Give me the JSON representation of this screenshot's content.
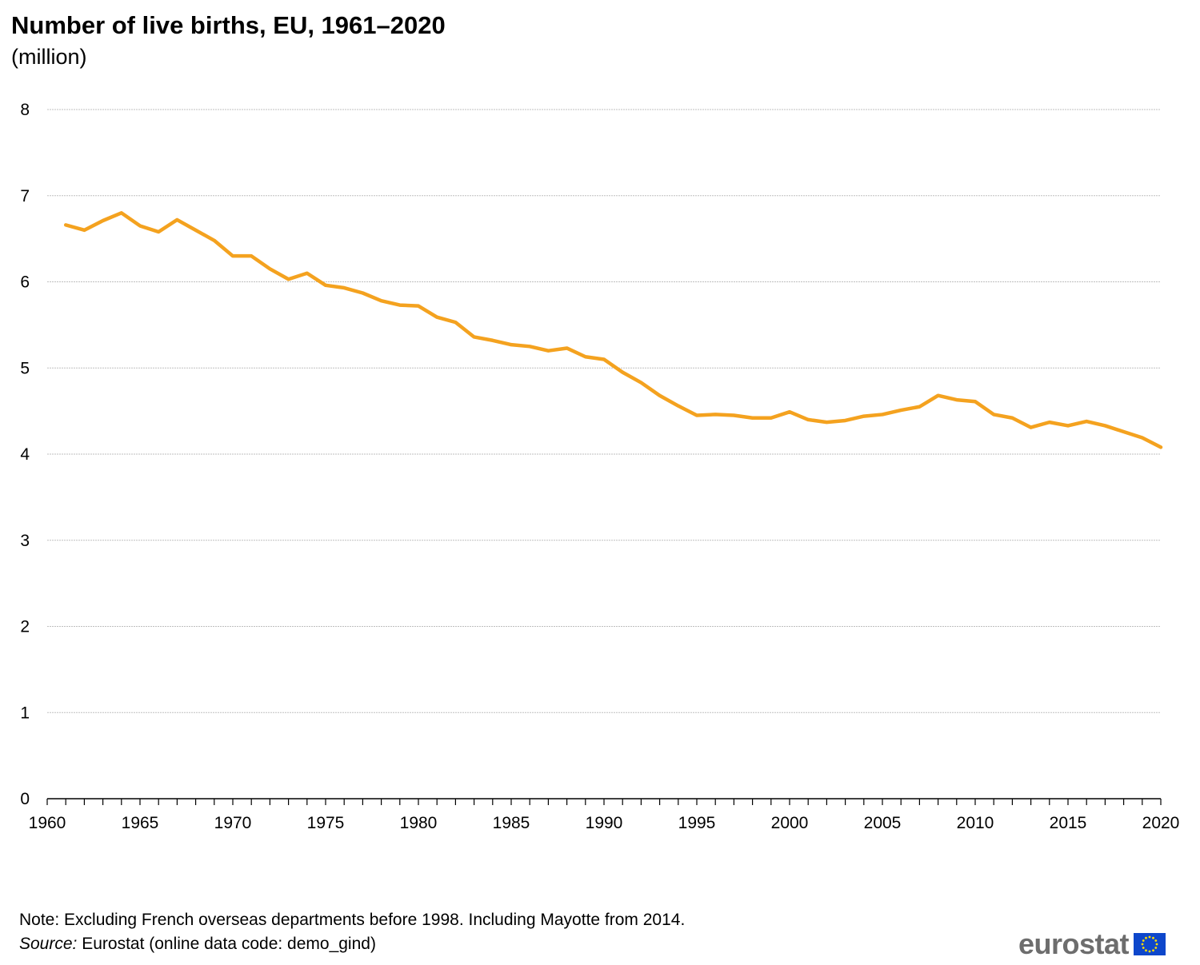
{
  "title": "Number of live births, EU, 1961–2020",
  "subtitle": "(million)",
  "note": "Note: Excluding French overseas departments before 1998. Including Mayotte from 2014.",
  "source_label": "Source:",
  "source_text": " Eurostat (online data code: demo_gind)",
  "logo_text": "eurostat",
  "colors": {
    "line": "#F4A21F",
    "grid": "#BFBFBF",
    "axis": "#000000",
    "logo_text": "#6D6D6D",
    "flag_bg": "#0E47CB",
    "flag_star": "#FFDD00"
  },
  "chart_data": {
    "type": "line",
    "xlim": [
      1960,
      2020
    ],
    "ylim": [
      0,
      8
    ],
    "x_ticks": [
      1960,
      1965,
      1970,
      1975,
      1980,
      1985,
      1990,
      1995,
      2000,
      2005,
      2010,
      2015,
      2020
    ],
    "y_ticks": [
      0,
      1,
      2,
      3,
      4,
      5,
      6,
      7,
      8
    ],
    "grid": true,
    "x": [
      1961,
      1962,
      1963,
      1964,
      1965,
      1966,
      1967,
      1968,
      1969,
      1970,
      1971,
      1972,
      1973,
      1974,
      1975,
      1976,
      1977,
      1978,
      1979,
      1980,
      1981,
      1982,
      1983,
      1984,
      1985,
      1986,
      1987,
      1988,
      1989,
      1990,
      1991,
      1992,
      1993,
      1994,
      1995,
      1996,
      1997,
      1998,
      1999,
      2000,
      2001,
      2002,
      2003,
      2004,
      2005,
      2006,
      2007,
      2008,
      2009,
      2010,
      2011,
      2012,
      2013,
      2014,
      2015,
      2016,
      2017,
      2018,
      2019,
      2020
    ],
    "series": [
      {
        "values": [
          6.66,
          6.6,
          6.71,
          6.8,
          6.65,
          6.58,
          6.72,
          6.6,
          6.48,
          6.3,
          6.3,
          6.15,
          6.03,
          6.1,
          5.96,
          5.93,
          5.87,
          5.78,
          5.73,
          5.72,
          5.59,
          5.53,
          5.36,
          5.32,
          5.27,
          5.25,
          5.2,
          5.23,
          5.13,
          5.1,
          4.95,
          4.83,
          4.68,
          4.56,
          4.45,
          4.46,
          4.45,
          4.42,
          4.42,
          4.49,
          4.4,
          4.37,
          4.39,
          4.44,
          4.46,
          4.51,
          4.55,
          4.68,
          4.63,
          4.61,
          4.46,
          4.42,
          4.31,
          4.37,
          4.33,
          4.38,
          4.33,
          4.26,
          4.19,
          4.08
        ]
      }
    ]
  }
}
